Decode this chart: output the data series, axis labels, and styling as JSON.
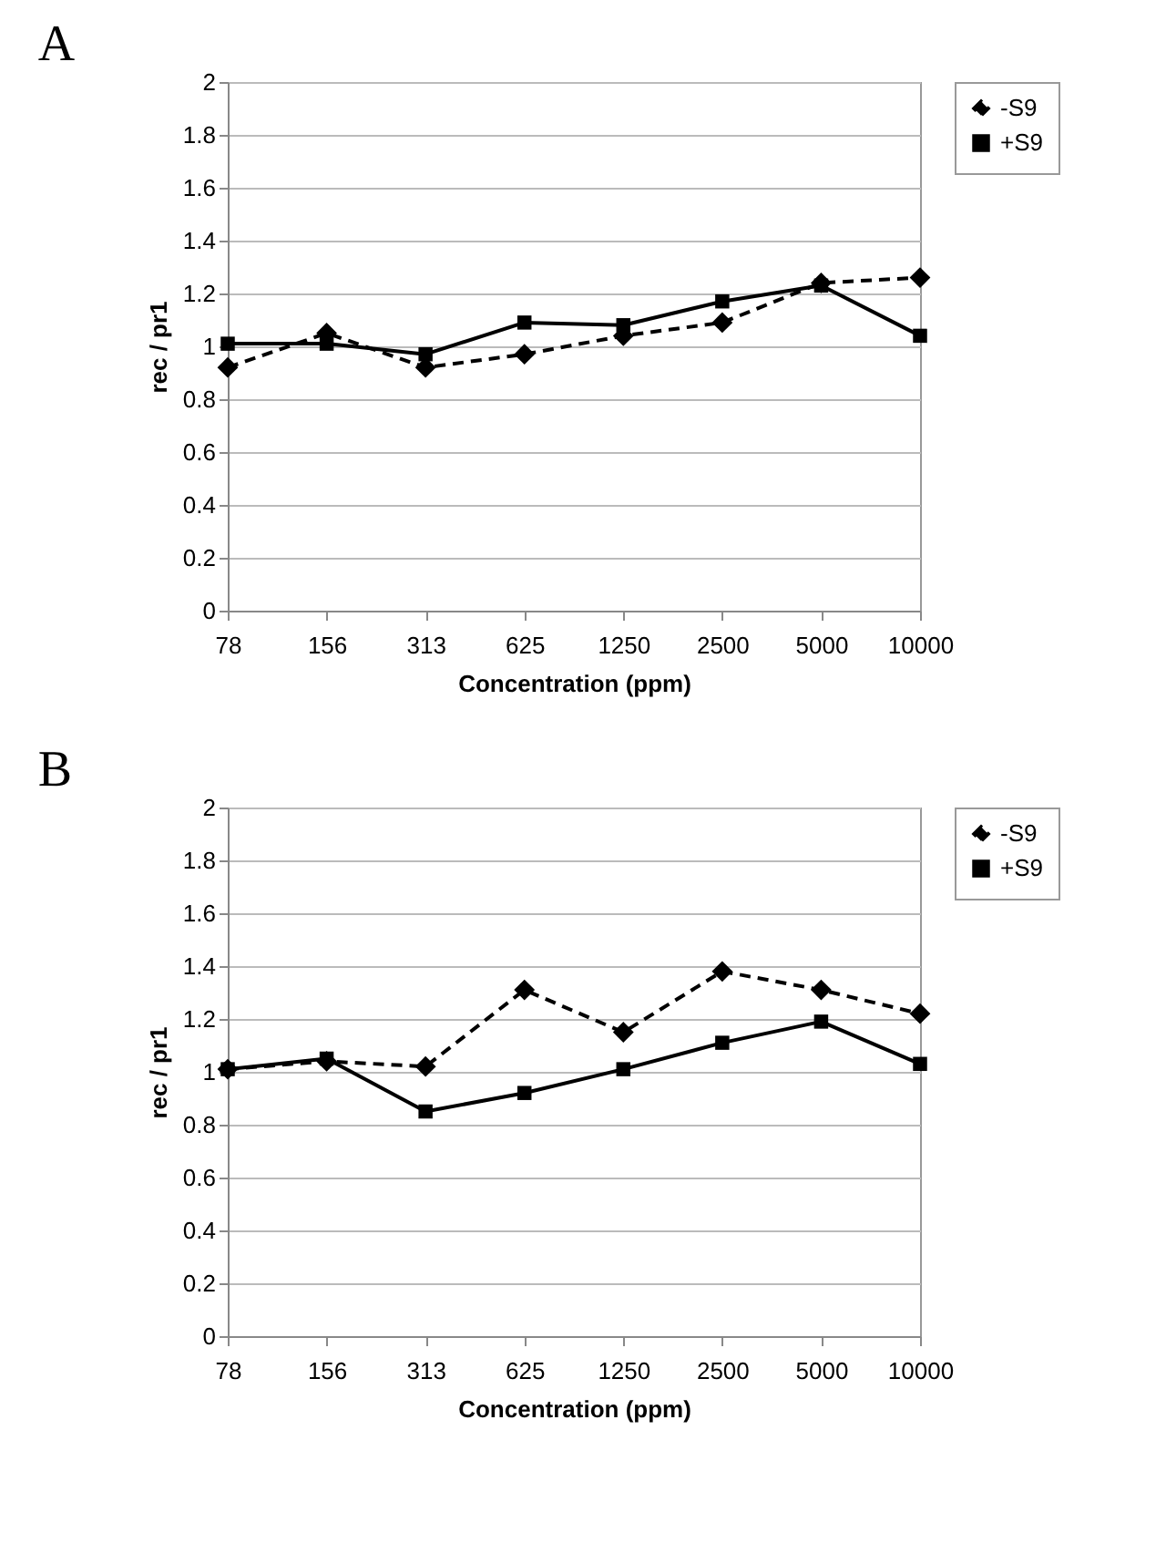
{
  "chart_data": [
    {
      "type": "line",
      "title": "A",
      "xlabel": "Concentration (ppm)",
      "ylabel": "rec / pr1",
      "categories": [
        "78",
        "156",
        "313",
        "625",
        "1250",
        "2500",
        "5000",
        "10000"
      ],
      "series": [
        {
          "name": "-S9",
          "color": "#000000",
          "marker": "diamond",
          "line_style": "dashed",
          "values": [
            0.92,
            1.05,
            0.92,
            0.97,
            1.04,
            1.09,
            1.24,
            1.26
          ]
        },
        {
          "name": "+S9",
          "color": "#000000",
          "marker": "square",
          "line_style": "solid",
          "values": [
            1.01,
            1.01,
            0.97,
            1.09,
            1.08,
            1.17,
            1.23,
            1.04
          ]
        }
      ],
      "ylim": [
        0,
        2
      ],
      "yticks": [
        0,
        0.2,
        0.4,
        0.6,
        0.8,
        1,
        1.2,
        1.4,
        1.6,
        1.8,
        2
      ],
      "grid": "y",
      "legend": "right"
    },
    {
      "type": "line",
      "title": "B",
      "xlabel": "Concentration (ppm)",
      "ylabel": "rec / pr1",
      "categories": [
        "78",
        "156",
        "313",
        "625",
        "1250",
        "2500",
        "5000",
        "10000"
      ],
      "series": [
        {
          "name": "-S9",
          "color": "#000000",
          "marker": "diamond",
          "line_style": "dashed",
          "values": [
            1.01,
            1.04,
            1.02,
            1.31,
            1.15,
            1.38,
            1.31,
            1.22
          ]
        },
        {
          "name": "+S9",
          "color": "#000000",
          "marker": "square",
          "line_style": "solid",
          "values": [
            1.01,
            1.05,
            0.85,
            0.92,
            1.01,
            1.11,
            1.19,
            1.03
          ]
        }
      ],
      "ylim": [
        0,
        2
      ],
      "yticks": [
        0,
        0.2,
        0.4,
        0.6,
        0.8,
        1,
        1.2,
        1.4,
        1.6,
        1.8,
        2
      ],
      "grid": "y",
      "legend": "right"
    }
  ]
}
